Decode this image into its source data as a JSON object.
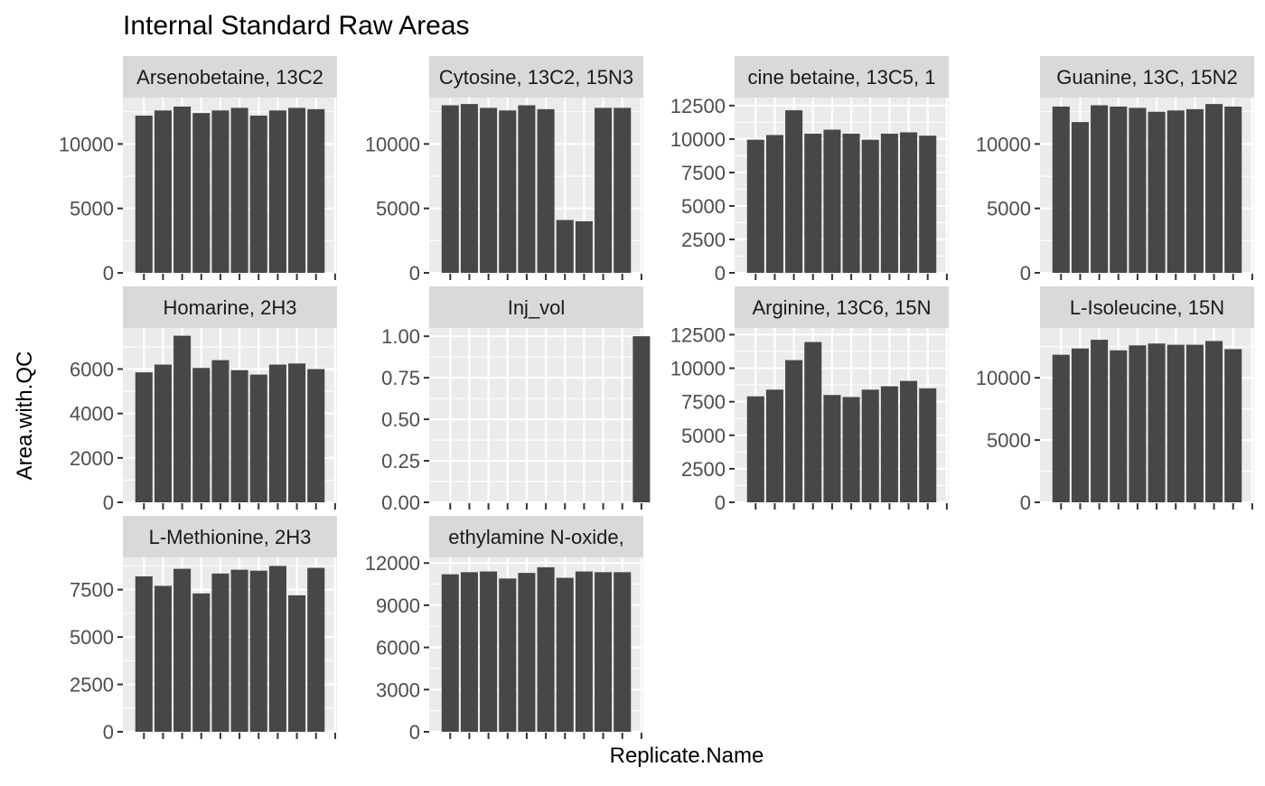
{
  "title": "Internal Standard Raw Areas",
  "xlabel": "Replicate.Name",
  "ylabel": "Area.with.QC",
  "colors": {
    "bar": "#474747",
    "panel": "#EBEBEB",
    "strip": "#D9D9D9",
    "grid": "#FFFFFF"
  },
  "chart_data": {
    "type": "bar",
    "layout": "facet_wrap",
    "ncol": 4,
    "x_tick_count": 11,
    "x_tick_labels_visible": false,
    "grid": true,
    "panels": [
      {
        "strip": "Arsenobetaine, 13C2",
        "values": [
          12200,
          12600,
          12900,
          12400,
          12600,
          12800,
          12200,
          12600,
          12800,
          12700,
          null
        ],
        "ylim": [
          0,
          13600
        ],
        "yticks": [
          0,
          5000,
          10000
        ],
        "ytick_labels": [
          "0",
          "5000",
          "10000"
        ]
      },
      {
        "strip": "Cytosine, 13C2, 15N3",
        "values": [
          13000,
          13100,
          12800,
          12600,
          13000,
          12700,
          4100,
          4000,
          12800,
          12800,
          null
        ],
        "ylim": [
          0,
          13600
        ],
        "yticks": [
          0,
          5000,
          10000
        ],
        "ytick_labels": [
          "0",
          "5000",
          "10000"
        ]
      },
      {
        "strip": "cine betaine, 13C5, 1",
        "values": [
          9950,
          10300,
          12150,
          10400,
          10700,
          10400,
          9950,
          10400,
          10500,
          10250,
          null
        ],
        "ylim": [
          0,
          13100
        ],
        "yticks": [
          0,
          2500,
          5000,
          7500,
          10000,
          12500
        ],
        "ytick_labels": [
          "0",
          "2500",
          "5000",
          "7500",
          "10000",
          "12500"
        ]
      },
      {
        "strip": "Guanine, 13C, 15N2",
        "values": [
          12900,
          11700,
          13000,
          12900,
          12800,
          12500,
          12600,
          12700,
          13100,
          12900,
          null
        ],
        "ylim": [
          0,
          13600
        ],
        "yticks": [
          0,
          5000,
          10000
        ],
        "ytick_labels": [
          "0",
          "5000",
          "10000"
        ]
      },
      {
        "strip": "Homarine, 2H3",
        "values": [
          5850,
          6200,
          7500,
          6050,
          6400,
          5950,
          5750,
          6200,
          6250,
          6000,
          null
        ],
        "ylim": [
          0,
          7850
        ],
        "yticks": [
          0,
          2000,
          4000,
          6000
        ],
        "ytick_labels": [
          "0",
          "2000",
          "4000",
          "6000"
        ]
      },
      {
        "strip": "Inj_vol",
        "values": [
          null,
          null,
          null,
          null,
          null,
          null,
          null,
          null,
          null,
          null,
          1.0
        ],
        "ylim": [
          0,
          1.05
        ],
        "yticks": [
          0,
          0.25,
          0.5,
          0.75,
          1.0
        ],
        "ytick_labels": [
          "0.00",
          "0.25",
          "0.50",
          "0.75",
          "1.00"
        ]
      },
      {
        "strip": "Arginine, 13C6, 15N",
        "values": [
          7900,
          8400,
          10600,
          11950,
          8000,
          7850,
          8400,
          8650,
          9050,
          8500,
          null
        ],
        "ylim": [
          0,
          13000
        ],
        "yticks": [
          0,
          2500,
          5000,
          7500,
          10000,
          12500
        ],
        "ytick_labels": [
          "0",
          "2500",
          "5000",
          "7500",
          "10000",
          "12500"
        ]
      },
      {
        "strip": "L-Isoleucine, 15N",
        "values": [
          11850,
          12350,
          13050,
          12200,
          12600,
          12750,
          12650,
          12650,
          12950,
          12300,
          null
        ],
        "ylim": [
          0,
          14000
        ],
        "yticks": [
          0,
          5000,
          10000
        ],
        "ytick_labels": [
          "0",
          "5000",
          "10000"
        ]
      },
      {
        "strip": "L-Methionine, 2H3",
        "values": [
          8200,
          7700,
          8600,
          7300,
          8350,
          8550,
          8500,
          8750,
          7200,
          8650,
          null
        ],
        "ylim": [
          0,
          9200
        ],
        "yticks": [
          0,
          2500,
          5000,
          7500
        ],
        "ytick_labels": [
          "0",
          "2500",
          "5000",
          "7500"
        ]
      },
      {
        "strip": "ethylamine N-oxide,",
        "values": [
          11200,
          11350,
          11400,
          10900,
          11300,
          11700,
          10950,
          11400,
          11350,
          11350,
          null
        ],
        "ylim": [
          0,
          12400
        ],
        "yticks": [
          0,
          3000,
          6000,
          9000,
          12000
        ],
        "ytick_labels": [
          "0",
          "3000",
          "6000",
          "9000",
          "12000"
        ]
      }
    ]
  }
}
